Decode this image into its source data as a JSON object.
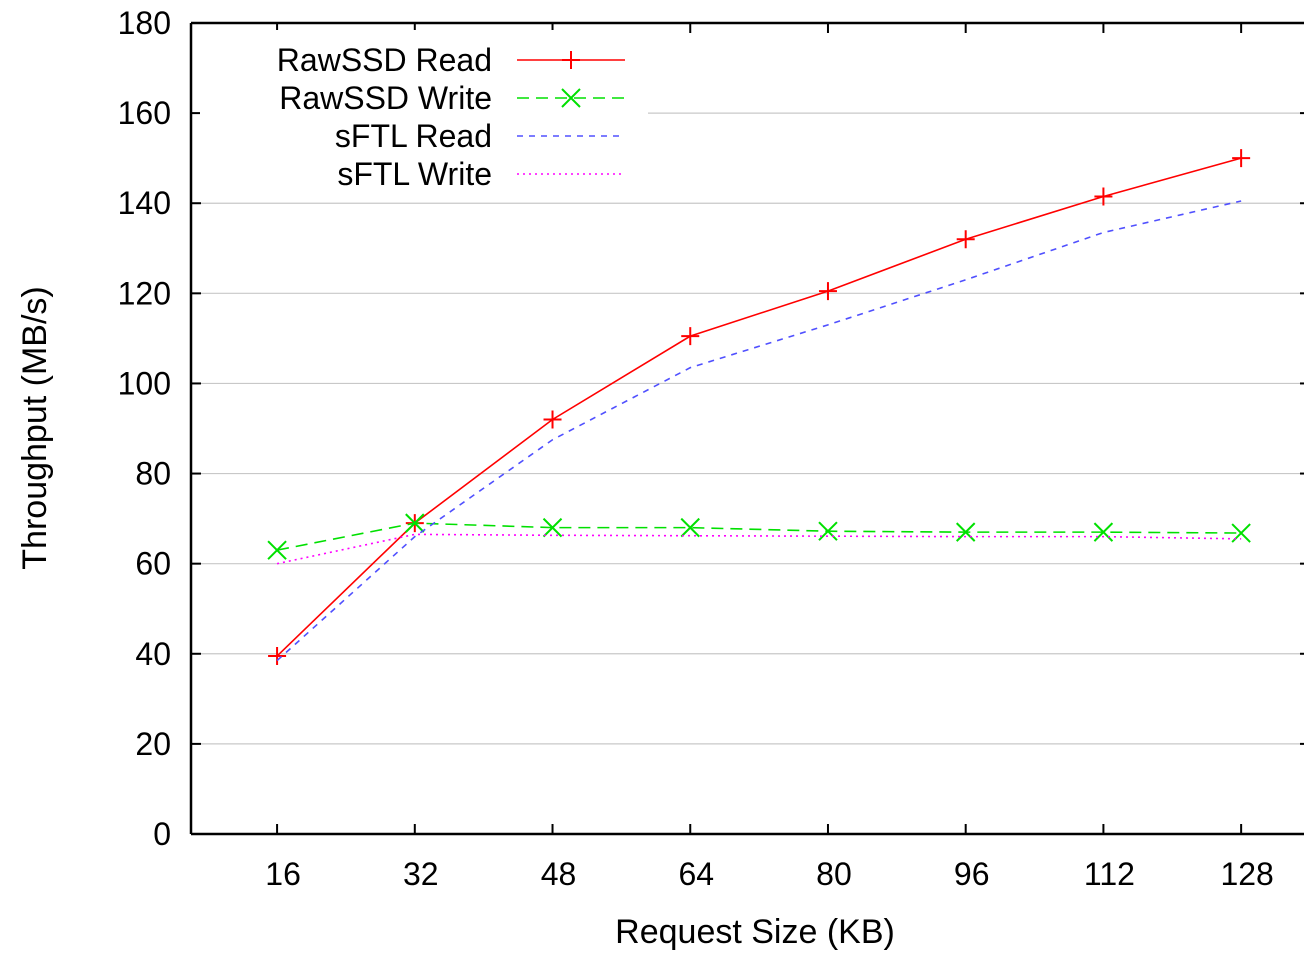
{
  "chart_data": {
    "type": "line",
    "xlabel": "Request Size (KB)",
    "ylabel": "Throughput (MB/s)",
    "x": [
      16,
      32,
      48,
      64,
      80,
      96,
      112,
      128
    ],
    "xlim": [
      6,
      136
    ],
    "ylim": [
      0,
      180
    ],
    "y_ticks": [
      0,
      20,
      40,
      60,
      80,
      100,
      120,
      140,
      160,
      180
    ],
    "grid": "horizontal",
    "legend_position": "top-left",
    "series": [
      {
        "name": "RawSSD Read",
        "color": "#ff0000",
        "dash": "solid",
        "marker": "plus",
        "values": [
          39.5,
          69,
          92,
          110.5,
          120.5,
          132,
          141.5,
          150
        ]
      },
      {
        "name": "RawSSD Write",
        "color": "#00e000",
        "dash": "dashed",
        "marker": "cross",
        "values": [
          63,
          69,
          68,
          68,
          67.2,
          67,
          67,
          66.8
        ]
      },
      {
        "name": "sFTL Read",
        "color": "#5050ff",
        "dash": "short-dashed",
        "marker": "none",
        "values": [
          38.5,
          66,
          87.5,
          103.5,
          113,
          123,
          133.5,
          140.5
        ]
      },
      {
        "name": "sFTL Write",
        "color": "#ff00ff",
        "dash": "dotted",
        "marker": "none",
        "values": [
          60,
          66.5,
          66.3,
          66.2,
          66.1,
          66,
          66,
          65.5
        ]
      }
    ]
  }
}
